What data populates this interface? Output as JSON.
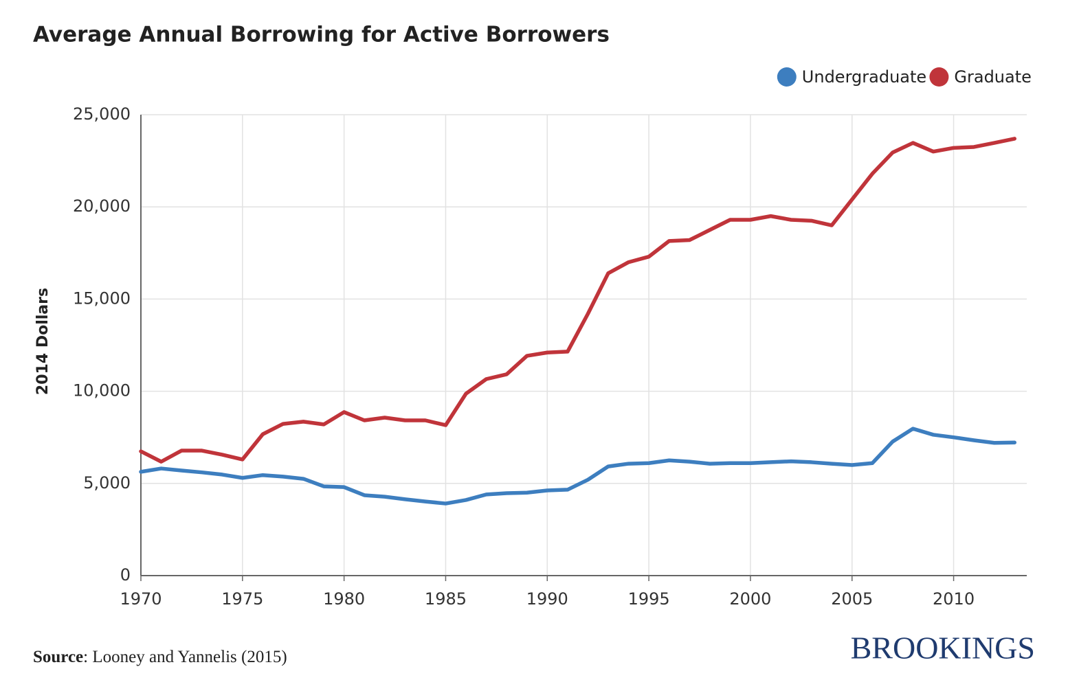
{
  "chart_data": {
    "type": "line",
    "title": "Average Annual Borrowing for Active Borrowers",
    "y_label": "2014 Dollars",
    "source_label": "Source",
    "source_text": ": Looney and Yannelis (2015)",
    "brand": "BROOKINGS",
    "x": [
      1970,
      1971,
      1972,
      1973,
      1974,
      1975,
      1976,
      1977,
      1978,
      1979,
      1980,
      1981,
      1982,
      1983,
      1984,
      1985,
      1986,
      1987,
      1988,
      1989,
      1990,
      1991,
      1992,
      1993,
      1994,
      1995,
      1996,
      1997,
      1998,
      1999,
      2000,
      2001,
      2002,
      2003,
      2004,
      2005,
      2006,
      2007,
      2008,
      2009,
      2010,
      2011,
      2012,
      2013
    ],
    "series": [
      {
        "name": "Undergraduate",
        "color": "#3d7ebf",
        "values": [
          5630,
          5810,
          5700,
          5600,
          5480,
          5300,
          5450,
          5370,
          5250,
          4840,
          4800,
          4360,
          4280,
          4140,
          4020,
          3910,
          4100,
          4400,
          4470,
          4500,
          4620,
          4660,
          5200,
          5920,
          6070,
          6100,
          6250,
          6180,
          6070,
          6100,
          6100,
          6150,
          6200,
          6150,
          6070,
          6000,
          6100,
          7270,
          7970,
          7640,
          7500,
          7340,
          7200,
          7220
        ]
      },
      {
        "name": "Graduate",
        "color": "#c0343a",
        "values": [
          6740,
          6180,
          6780,
          6780,
          6560,
          6300,
          7670,
          8230,
          8350,
          8200,
          8870,
          8420,
          8570,
          8420,
          8420,
          8160,
          9870,
          10660,
          10920,
          11920,
          12100,
          12150,
          14200,
          16400,
          17000,
          17300,
          18150,
          18200,
          18750,
          19300,
          19300,
          19500,
          19300,
          19250,
          19000,
          20400,
          21800,
          22950,
          23470,
          23000,
          23200,
          23250,
          23470,
          23700
        ]
      }
    ],
    "xlim": [
      1970,
      2013.6
    ],
    "xticks": [
      1970,
      1975,
      1980,
      1985,
      1990,
      1995,
      2000,
      2005,
      2010
    ],
    "ylim": [
      0,
      25000
    ],
    "yticks": [
      0,
      {
        "value": 5000,
        "label": "5,000"
      },
      {
        "value": 10000,
        "label": "10,000"
      },
      {
        "value": 15000,
        "label": "15,000"
      },
      {
        "value": 20000,
        "label": "20,000"
      },
      {
        "value": 25000,
        "label": "25,000"
      }
    ],
    "grid": true,
    "legend": "top-right"
  }
}
